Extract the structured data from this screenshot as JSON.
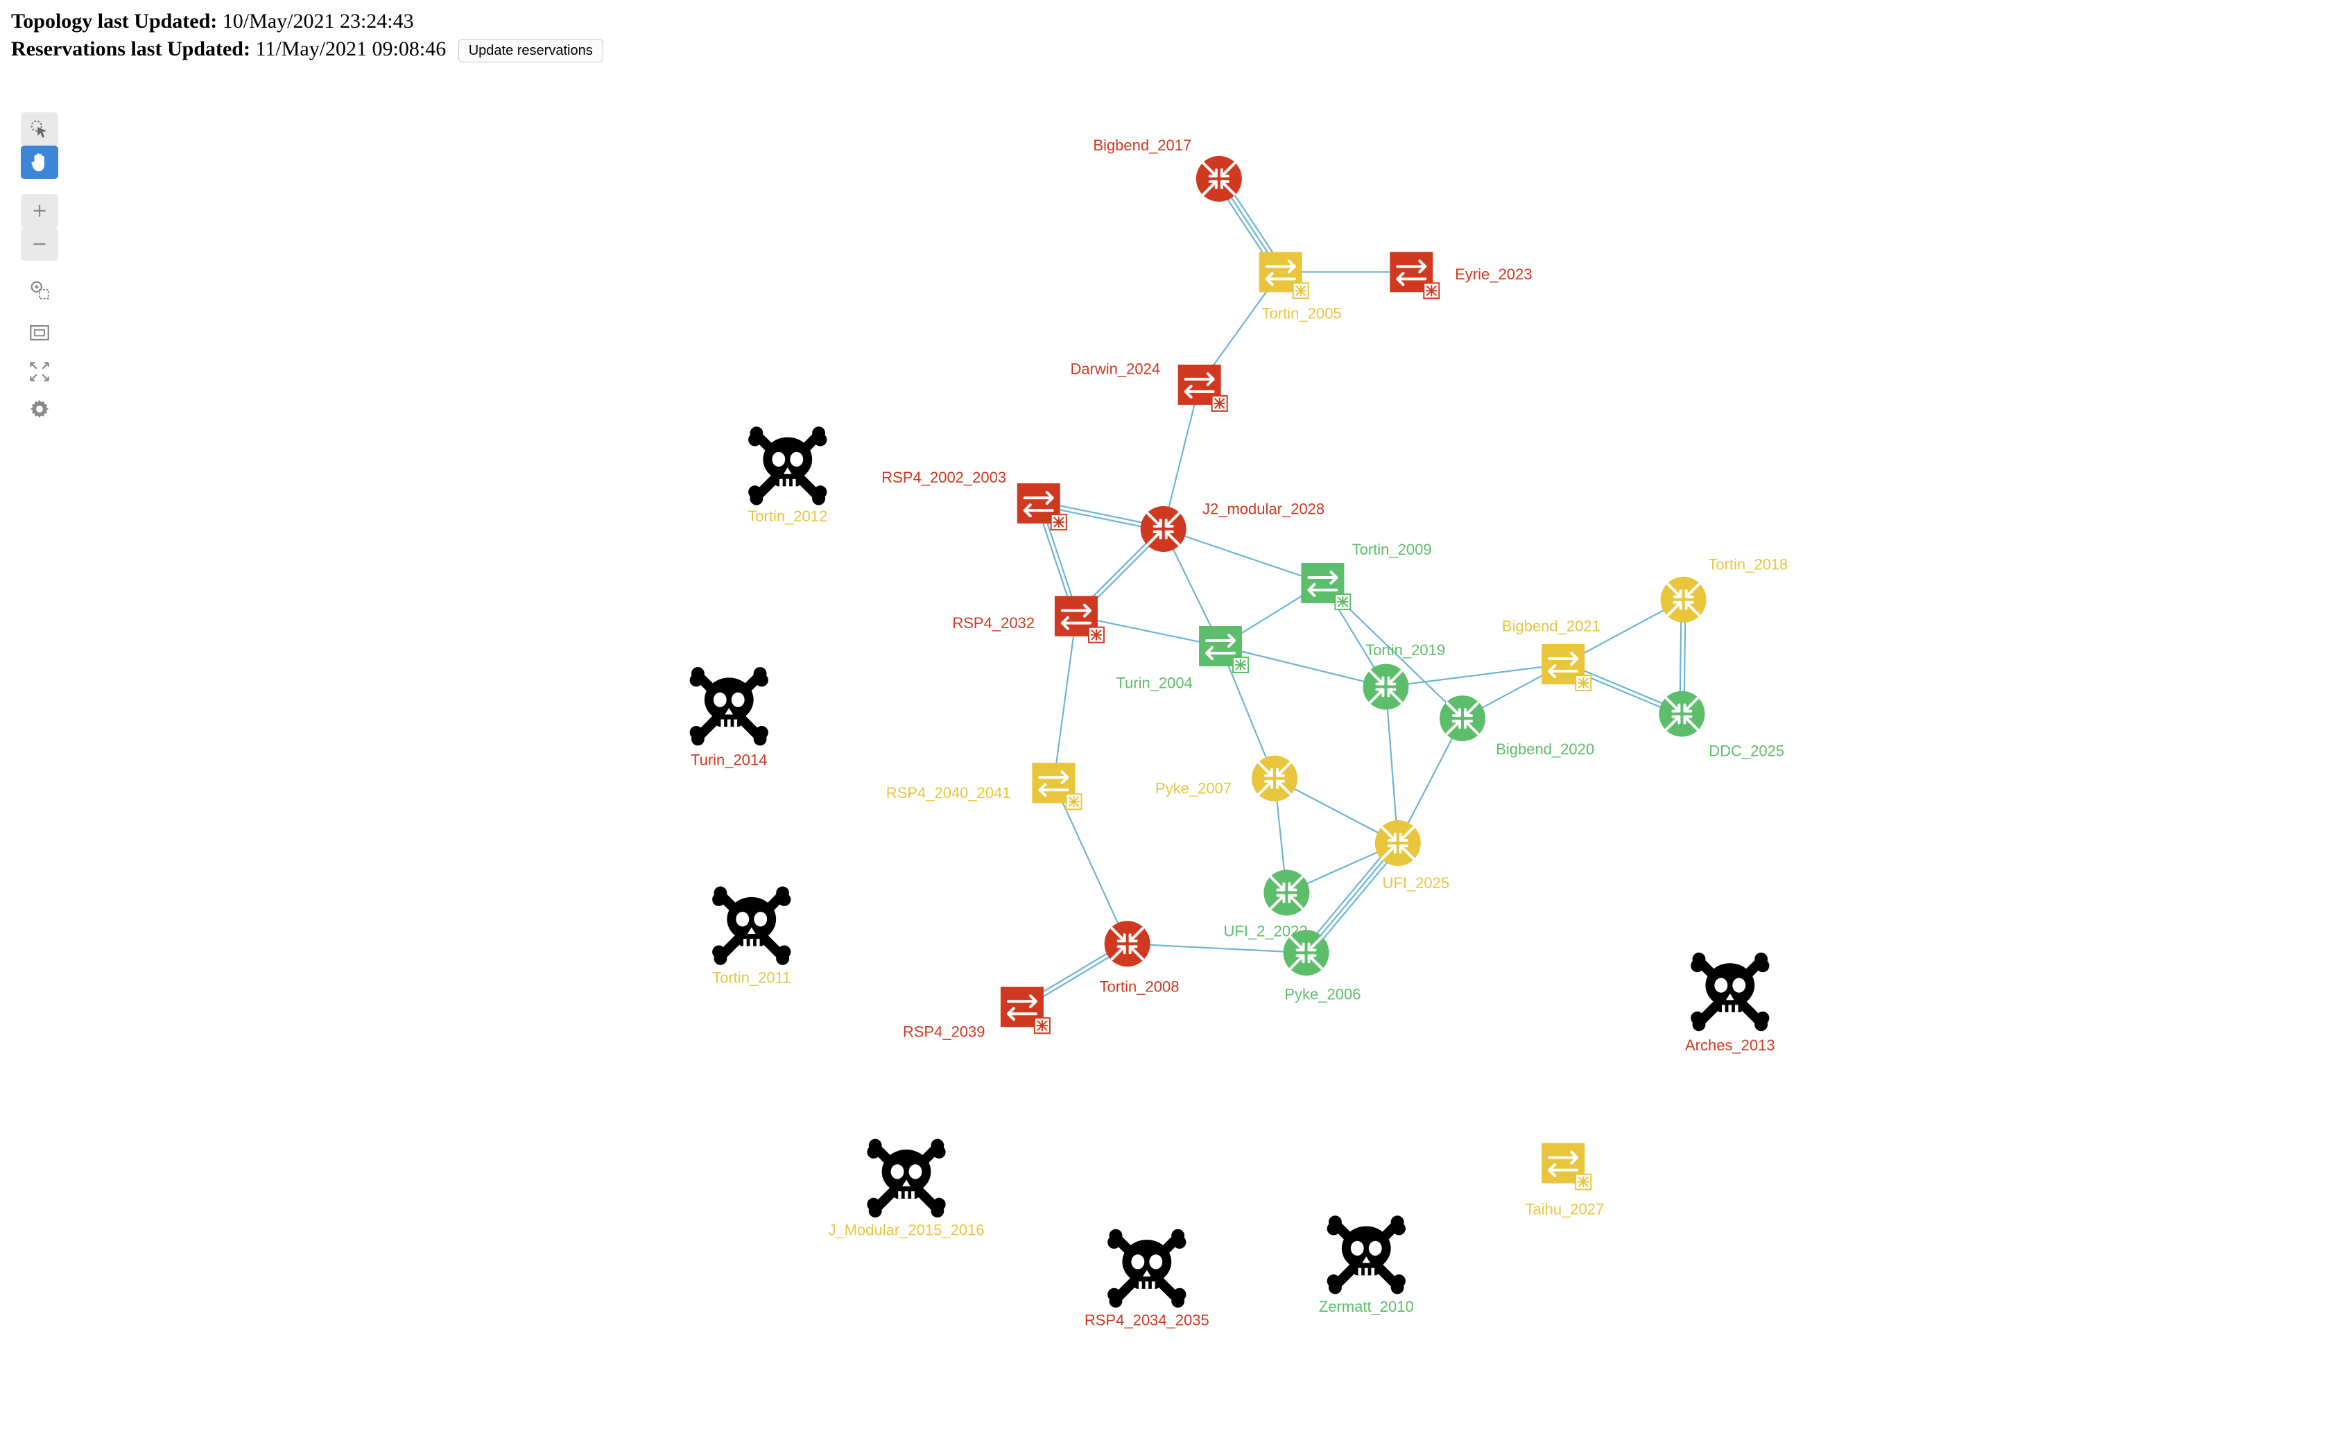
{
  "header": {
    "topology_label": "Topology last Updated:",
    "topology_value": "10/May/2021 23:24:43",
    "reservations_label": "Reservations last Updated:",
    "reservations_value": "11/May/2021 09:08:46",
    "update_button": "Update reservations"
  },
  "toolbar": {
    "tools": [
      "select-icon",
      "pan-hand-icon",
      "zoom-in-icon",
      "zoom-out-icon",
      "zoom-area-icon",
      "fit-view-icon",
      "expand-icon",
      "settings-icon"
    ],
    "active_tool": "pan-hand-icon"
  },
  "colors": {
    "red": "#d0391f",
    "yellow": "#e9c53c",
    "green": "#5cbe6a",
    "link": "#6bb5d6",
    "down": "#000000"
  },
  "nodes": [
    {
      "id": "Bigbend_2017",
      "label": "Bigbend_2017",
      "type": "router",
      "status": "red"
    },
    {
      "id": "Tortin_2005",
      "label": "Tortin_2005",
      "type": "switch",
      "status": "yellow"
    },
    {
      "id": "Eyrie_2023",
      "label": "Eyrie_2023",
      "type": "switch",
      "status": "red"
    },
    {
      "id": "Darwin_2024",
      "label": "Darwin_2024",
      "type": "switch",
      "status": "red"
    },
    {
      "id": "Tortin_2012",
      "label": "Tortin_2012",
      "type": "down",
      "status": "yellow"
    },
    {
      "id": "RSP4_2002_2003",
      "label": "RSP4_2002_2003",
      "type": "switch",
      "status": "red"
    },
    {
      "id": "J2_modular_2028",
      "label": "J2_modular_2028",
      "type": "router",
      "status": "red"
    },
    {
      "id": "Tortin_2009",
      "label": "Tortin_2009",
      "type": "switch",
      "status": "green"
    },
    {
      "id": "Tortin_2018",
      "label": "Tortin_2018",
      "type": "router",
      "status": "yellow"
    },
    {
      "id": "Bigbend_2021",
      "label": "Bigbend_2021",
      "type": "switch",
      "status": "yellow"
    },
    {
      "id": "RSP4_2032",
      "label": "RSP4_2032",
      "type": "switch",
      "status": "red"
    },
    {
      "id": "Turin_2004",
      "label": "Turin_2004",
      "type": "switch",
      "status": "green"
    },
    {
      "id": "Tortin_2019",
      "label": "Tortin_2019",
      "type": "router",
      "status": "green"
    },
    {
      "id": "Bigbend_2020",
      "label": "Bigbend_2020",
      "type": "router",
      "status": "green"
    },
    {
      "id": "DDC_2025",
      "label": "DDC_2025",
      "type": "router",
      "status": "green"
    },
    {
      "id": "Turin_2014",
      "label": "Turin_2014",
      "type": "down",
      "status": "red"
    },
    {
      "id": "RSP4_2040_2041",
      "label": "RSP4_2040_2041",
      "type": "switch",
      "status": "yellow"
    },
    {
      "id": "Pyke_2007",
      "label": "Pyke_2007",
      "type": "router",
      "status": "yellow"
    },
    {
      "id": "UFI_2025",
      "label": "UFI_2025",
      "type": "router",
      "status": "yellow"
    },
    {
      "id": "UFI_2_2022",
      "label": "UFI_2_2022",
      "type": "router",
      "status": "green"
    },
    {
      "id": "Tortin_2011",
      "label": "Tortin_2011",
      "type": "down",
      "status": "yellow"
    },
    {
      "id": "Tortin_2008",
      "label": "Tortin_2008",
      "type": "router",
      "status": "red"
    },
    {
      "id": "Pyke_2006",
      "label": "Pyke_2006",
      "type": "router",
      "status": "green"
    },
    {
      "id": "RSP4_2039",
      "label": "RSP4_2039",
      "type": "switch",
      "status": "red"
    },
    {
      "id": "Arches_2013",
      "label": "Arches_2013",
      "type": "down",
      "status": "red"
    },
    {
      "id": "J_Modular_2015_2016",
      "label": "J_Modular_2015_2016",
      "type": "down",
      "status": "yellow"
    },
    {
      "id": "Taihu_2027",
      "label": "Taihu_2027",
      "type": "switch",
      "status": "yellow"
    },
    {
      "id": "RSP4_2034_2035",
      "label": "RSP4_2034_2035",
      "type": "down",
      "status": "red"
    },
    {
      "id": "Zermatt_2010",
      "label": "Zermatt_2010",
      "type": "down",
      "status": "green"
    }
  ],
  "links": [
    [
      "Bigbend_2017",
      "Tortin_2005",
      3
    ],
    [
      "Tortin_2005",
      "Eyrie_2023",
      1
    ],
    [
      "Tortin_2005",
      "Darwin_2024",
      1
    ],
    [
      "Darwin_2024",
      "J2_modular_2028",
      1
    ],
    [
      "RSP4_2002_2003",
      "J2_modular_2028",
      2
    ],
    [
      "RSP4_2002_2003",
      "RSP4_2032",
      2
    ],
    [
      "RSP4_2032",
      "J2_modular_2028",
      2
    ],
    [
      "J2_modular_2028",
      "Tortin_2009",
      1
    ],
    [
      "J2_modular_2028",
      "Turin_2004",
      1
    ],
    [
      "RSP4_2032",
      "Turin_2004",
      1
    ],
    [
      "Turin_2004",
      "Tortin_2009",
      1
    ],
    [
      "Tortin_2009",
      "Tortin_2019",
      1
    ],
    [
      "Tortin_2009",
      "Bigbend_2020",
      1
    ],
    [
      "Turin_2004",
      "Tortin_2019",
      1
    ],
    [
      "Turin_2004",
      "Pyke_2007",
      1
    ],
    [
      "Tortin_2019",
      "Bigbend_2021",
      1
    ],
    [
      "Bigbend_2020",
      "Bigbend_2021",
      1
    ],
    [
      "Bigbend_2021",
      "Tortin_2018",
      1
    ],
    [
      "Bigbend_2021",
      "DDC_2025",
      2
    ],
    [
      "Tortin_2018",
      "DDC_2025",
      2
    ],
    [
      "Tortin_2019",
      "UFI_2025",
      1
    ],
    [
      "Bigbend_2020",
      "UFI_2025",
      1
    ],
    [
      "Pyke_2007",
      "UFI_2025",
      1
    ],
    [
      "Pyke_2007",
      "UFI_2_2022",
      1
    ],
    [
      "UFI_2025",
      "UFI_2_2022",
      1
    ],
    [
      "UFI_2025",
      "Pyke_2006",
      3
    ],
    [
      "Tortin_2008",
      "Pyke_2006",
      1
    ],
    [
      "Tortin_2008",
      "RSP4_2039",
      2
    ],
    [
      "RSP4_2040_2041",
      "Tortin_2008",
      1
    ],
    [
      "RSP4_2032",
      "RSP4_2040_2041",
      1
    ]
  ]
}
